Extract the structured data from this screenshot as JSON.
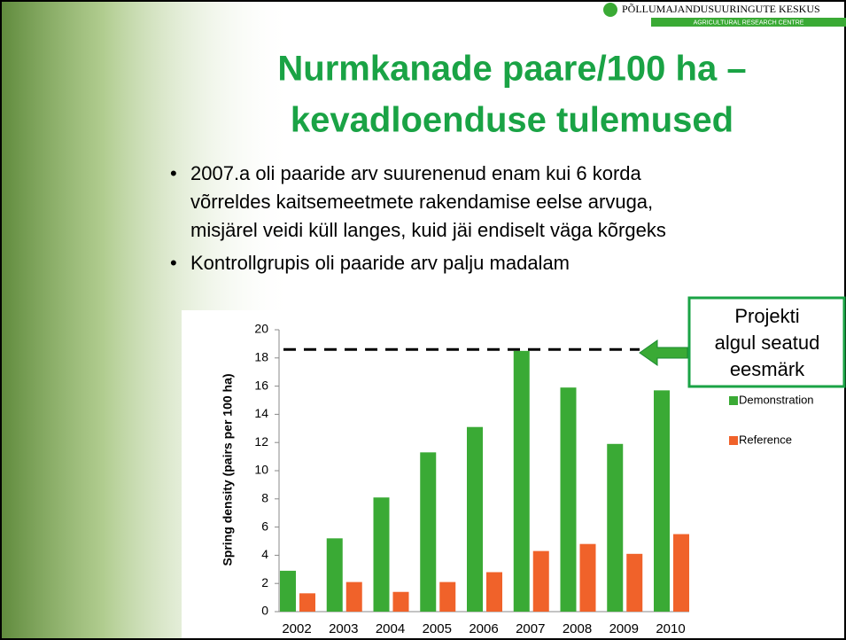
{
  "slide": {
    "logo": {
      "name": "PÕLLUMAJANDUSUURINGUTE KESKUS",
      "subtitle": "AGRICULTURAL RESEARCH CENTRE"
    },
    "title": [
      "Nurmkanade paare/100 ha –",
      "kevadloenduse tulemused"
    ],
    "bullets": [
      {
        "lines": [
          "2007.a oli paaride arv suurenenud enam kui 6 korda",
          "võrreldes kaitsemeetmete rakendamise eelse arvuga,",
          "misjärel veidi küll langes, kuid jäi endiselt väga kõrgeks"
        ]
      },
      {
        "lines": [
          "Kontrollgrupis oli paaride arv palju madalam"
        ]
      }
    ]
  },
  "chart_data": {
    "type": "bar",
    "y_label": "Spring density (pairs per 100 ha)",
    "categories": [
      "2002",
      "2003",
      "2004",
      "2005",
      "2006",
      "2007",
      "2008",
      "2009",
      "2010"
    ],
    "series": [
      {
        "name": "Demonstration",
        "color": "#3aaa35",
        "values": [
          2.9,
          5.2,
          8.1,
          11.3,
          13.1,
          18.5,
          15.9,
          11.9,
          15.7
        ]
      },
      {
        "name": "Reference",
        "color": "#f0622a",
        "values": [
          1.3,
          2.1,
          1.4,
          2.1,
          2.8,
          4.3,
          4.8,
          4.1,
          5.5
        ]
      }
    ],
    "ylim": [
      0,
      20
    ],
    "yticks": [
      0,
      2,
      4,
      6,
      8,
      10,
      12,
      14,
      16,
      18,
      20
    ],
    "target": 18.6,
    "annotation": [
      "Projekti",
      "algul seatud",
      "eesmärk"
    ]
  }
}
